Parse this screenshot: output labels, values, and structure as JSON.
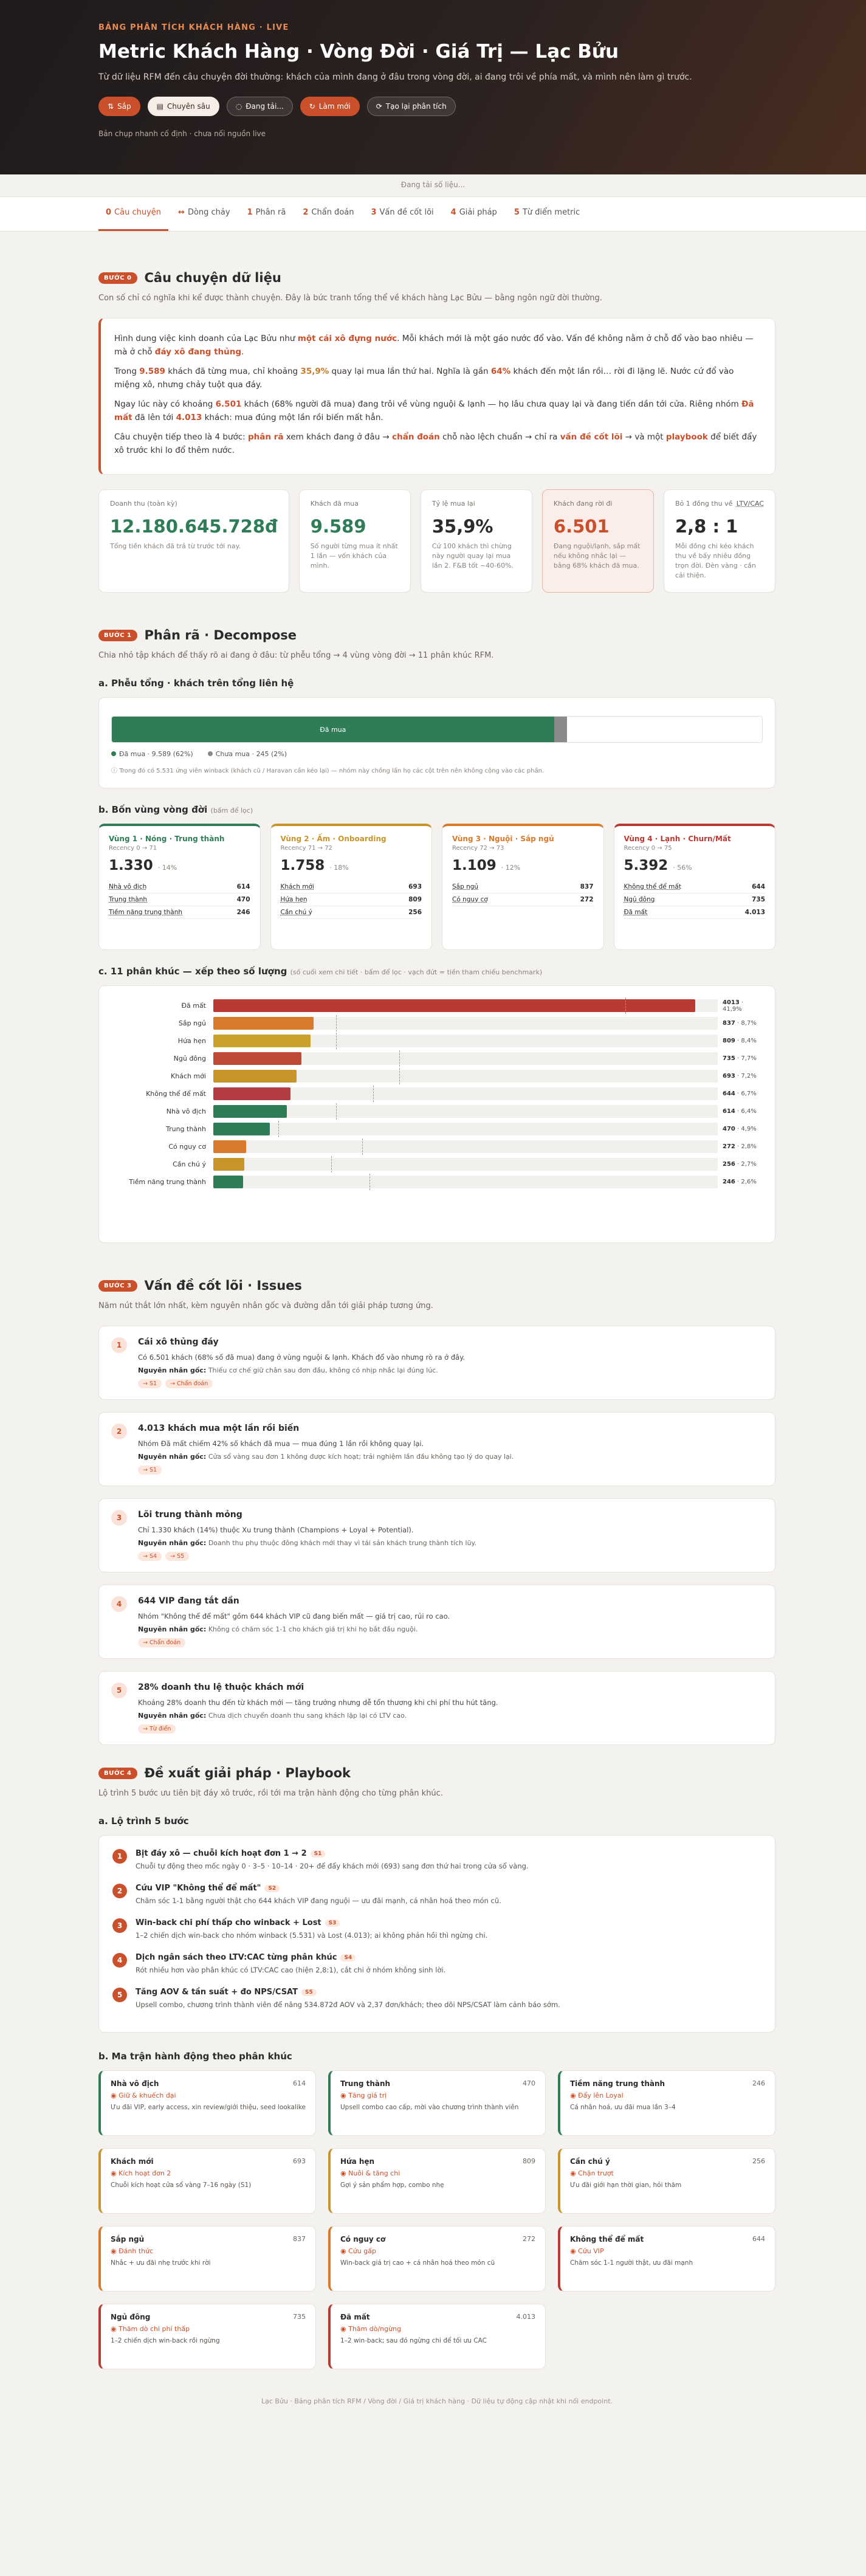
{
  "hero": {
    "eyebrow": "BẢNG PHÂN TÍCH KHÁCH HÀNG · LIVE",
    "title": "Metric Khách Hàng · Vòng Đời · Giá Trị — Lạc Bửu",
    "subtitle": "Từ dữ liệu RFM đến câu chuyện đời thường: khách của mình đang ở đâu trong vòng đời, ai đang trôi về phía mất, và mình nên làm gì trước.",
    "buttons": {
      "sort": "Sắp",
      "detail": "Chuyên sâu",
      "loading": "Đang tải...",
      "refresh": "Làm mới",
      "report": "Tạo lại phân tích"
    },
    "note": "Bản chụp nhanh cố định · chưa nối nguồn live"
  },
  "status": "Đang tải số liệu...",
  "tabs": [
    {
      "n": "0",
      "label": "Câu chuyện"
    },
    {
      "n": "↔",
      "label": "Dòng chảy"
    },
    {
      "n": "1",
      "label": "Phân rã"
    },
    {
      "n": "2",
      "label": "Chẩn đoán"
    },
    {
      "n": "3",
      "label": "Vấn đề cốt lõi"
    },
    {
      "n": "4",
      "label": "Giải pháp"
    },
    {
      "n": "5",
      "label": "Từ điển metric"
    }
  ],
  "story": {
    "pill": "BƯỚC 0",
    "title": "Câu chuyện dữ liệu",
    "lead": "Con số chỉ có nghĩa khi kể được thành chuyện. Đây là bức tranh tổng thể về khách hàng Lạc Bửu — bằng ngôn ngữ đời thường.",
    "p1a": "Hình dung việc kinh doanh của Lạc Bửu như ",
    "p1b": "một cái xô đựng nước",
    "p1c": ". Mỗi khách mới là một gáo nước đổ vào. Vấn đề không nằm ở chỗ đổ vào bao nhiêu — mà ở chỗ ",
    "p1d": "đáy xô đang thủng",
    "p1e": ".",
    "p2a": "Trong ",
    "p2b": "9.589",
    "p2c": " khách đã từng mua, chỉ khoảng ",
    "p2d": "35,9%",
    "p2e": " quay lại mua lần thứ hai. Nghĩa là gần ",
    "p2f": "64%",
    "p2g": " khách đến một lần rồi… rời đi lặng lẽ. Nước cứ đổ vào miệng xô, nhưng chảy tuột qua đáy.",
    "p3a": "Ngay lúc này có khoảng ",
    "p3b": "6.501",
    "p3c": " khách (68% người đã mua) đang trôi về vùng nguội & lạnh — họ lâu chưa quay lại và đang tiến dần tới cửa. Riêng nhóm ",
    "p3d": "Đã mất",
    "p3e": " đã lên tới ",
    "p3f": "4.013",
    "p3g": " khách: mua đúng một lần rồi biến mất hẳn.",
    "p4a": "Câu chuyện tiếp theo là 4 bước: ",
    "p4b": "phân rã",
    "p4c": " xem khách đang ở đâu → ",
    "p4d": "chẩn đoán",
    "p4e": " chỗ nào lệch chuẩn → chỉ ra ",
    "p4f": "vấn đề cốt lõi",
    "p4g": " → và một ",
    "p4h": "playbook",
    "p4i": " để biết đẩy xô trước khi lo đổ thêm nước."
  },
  "kpis": [
    {
      "label": "Doanh thu (toàn kỳ)",
      "value": "12.180.645.728đ",
      "desc": "Tổng tiền khách đã trả từ trước tới nay.",
      "color": "#2f7d57"
    },
    {
      "label": "Khách đã mua",
      "value": "9.589",
      "desc": "Số người từng mua ít nhất 1 lần — vốn khách của mình.",
      "color": "#2f7d57"
    },
    {
      "label": "Tỷ lệ mua lại",
      "value": "35,9%",
      "desc": "Cứ 100 khách thì chừng này người quay lại mua lần 2. F&B tốt ~40-60%.",
      "color": "#2b2b2b"
    },
    {
      "label": "Khách đang rời đi",
      "value": "6.501",
      "desc": "Đang nguội/lạnh, sắp mất nếu không nhắc lại — bằng 68% khách đã mua.",
      "color": "#c9502b"
    },
    {
      "label": "Bỏ 1 đồng thu về",
      "label2": "LTV/CAC",
      "value": "2,8 : 1",
      "desc": "Mỗi đồng chi kéo khách thu về bấy nhiêu đồng trọn đời. Đèn vàng · cần cải thiện.",
      "color": "#2b2b2b"
    }
  ],
  "decompose": {
    "pill": "BƯỚC 1",
    "title": "Phân rã · Decompose",
    "lead": "Chia nhỏ tập khách để thấy rõ ai đang ở đâu: từ phễu tổng → 4 vùng vòng đời → 11 phân khúc RFM.",
    "funnel_h": "a. Phễu tổng · khách trên tổng liên hệ",
    "bar_label": "Đã mua",
    "leg1": "Đã mua · 9.589 (62%)",
    "leg2": "Chưa mua · 245 (2%)",
    "note": "Trong đó có 5.531 ứng viên winback (khách cũ / Haravan cần kéo lại) — nhóm này chồng lấn họ các cột trên nên không cộng vào các phần.",
    "cycle_h": "b. Bốn vùng vòng đời",
    "cycle_small": "(bấm để lọc)",
    "seg_h": "c. 11 phân khúc — xếp theo số lượng",
    "seg_small": "(số cuối xem chi tiết · bấm để lọc · vạch đứt = tiền tham chiếu benchmark)"
  },
  "cycles": [
    {
      "title": "Vùng 1 · Nóng · Trung thành",
      "rec": "Recency 0 → 71",
      "big": "1.330",
      "pct": "· 14%",
      "rows": [
        [
          "Nhà vô địch",
          "614"
        ],
        [
          "Trung thành",
          "470"
        ],
        [
          "Tiềm năng trung thành",
          "246"
        ]
      ],
      "color": "#2f7d57"
    },
    {
      "title": "Vùng 2 · Ấm · Onboarding",
      "rec": "Recency 71 → 72",
      "big": "1.758",
      "pct": "· 18%",
      "rows": [
        [
          "Khách mới",
          "693"
        ],
        [
          "Hứa hẹn",
          "809"
        ],
        [
          "Cần chú ý",
          "256"
        ]
      ],
      "color": "#c8952a"
    },
    {
      "title": "Vùng 3 · Nguội · Sắp ngủ",
      "rec": "Recency 72 → 73",
      "big": "1.109",
      "pct": "· 12%",
      "rows": [
        [
          "Sắp ngủ",
          "837"
        ],
        [
          "Có nguy cơ",
          "272"
        ]
      ],
      "color": "#d97a2a"
    },
    {
      "title": "Vùng 4 · Lạnh · Churn/Mất",
      "rec": "Recency 0 → 75",
      "big": "5.392",
      "pct": "· 56%",
      "rows": [
        [
          "Không thể để mất",
          "644"
        ],
        [
          "Ngủ đông",
          "735"
        ],
        [
          "Đã mất",
          "4.013"
        ]
      ],
      "color": "#b93a32"
    }
  ],
  "chart_data": {
    "type": "bar",
    "orientation": "horizontal",
    "title": "11 phân khúc — xếp theo số lượng",
    "categories": [
      "Đã mất",
      "Sắp ngủ",
      "Hứa hẹn",
      "Ngủ đông",
      "Khách mới",
      "Không thể để mất",
      "Nhà vô địch",
      "Trung thành",
      "Có nguy cơ",
      "Cần chú ý",
      "Tiềm năng trung thành"
    ],
    "values": [
      4013,
      837,
      809,
      735,
      693,
      644,
      614,
      470,
      272,
      256,
      246
    ],
    "percents": [
      "41,9%",
      "8,7%",
      "8,4%",
      "7,7%",
      "7,2%",
      "6,7%",
      "6,4%",
      "4,9%",
      "2,8%",
      "2,7%",
      "2,6%"
    ],
    "benchmarks": [
      3430,
      1020,
      1020,
      1550,
      1550,
      1330,
      1020,
      540,
      1240,
      980,
      1300
    ],
    "colors": [
      "#b93a32",
      "#d97a2a",
      "#c8a22a",
      "#c04a38",
      "#c8952a",
      "#b23b44",
      "#2f7d57",
      "#2f7d57",
      "#d97a2a",
      "#c8952a",
      "#2f7d57"
    ],
    "xlim": [
      0,
      4200
    ]
  },
  "issues_sec": {
    "pill": "BƯỚC 3",
    "title": "Vấn đề cốt lõi · Issues",
    "lead": "Năm nút thắt lớn nhất, kèm nguyên nhân gốc và đường dẫn tới giải pháp tương ứng.",
    "cause_label": "Nguyên nhân gốc:"
  },
  "issues": [
    {
      "n": "1",
      "title": "Cái xô thủng đáy",
      "text": "Có 6.501 khách (68% số đã mua) đang ở vùng nguội & lạnh. Khách đổ vào nhưng rò ra ở đây.",
      "cause": "Thiếu cơ chế giữ chân sau đơn đầu, không có nhịp nhắc lại đúng lúc.",
      "tags": [
        "→ S1",
        "→ Chẩn đoán"
      ]
    },
    {
      "n": "2",
      "title": "4.013 khách mua một lần rồi biến",
      "text": "Nhóm Đã mất chiếm 42% số khách đã mua — mua đúng 1 lần rồi không quay lại.",
      "cause": "Cửa sổ vàng sau đơn 1 không được kích hoạt; trải nghiệm lần đầu không tạo lý do quay lại.",
      "tags": [
        "→ S1"
      ]
    },
    {
      "n": "3",
      "title": "Lõi trung thành mỏng",
      "text": "Chỉ 1.330 khách (14%) thuộc Xu trung thành (Champions + Loyal + Potential).",
      "cause": "Doanh thu phụ thuộc đông khách mới thay vì tái sản khách trung thành tích lũy.",
      "tags": [
        "→ S4",
        "→ S5"
      ]
    },
    {
      "n": "4",
      "title": "644 VIP đang tắt dần",
      "text": "Nhóm \"Không thể để mất\" gồm 644 khách VIP cũ đang biến mất — giá trị cao, rủi ro cao.",
      "cause": "Không có chăm sóc 1-1 cho khách giá trị khi họ bắt đầu nguội.",
      "tags": [
        "→ Chẩn đoán"
      ]
    },
    {
      "n": "5",
      "title": "28% doanh thu lệ thuộc khách mới",
      "text": "Khoảng 28% doanh thu đến từ khách mới — tăng trưởng nhưng dễ tổn thương khi chi phí thu hút tăng.",
      "cause": "Chưa dịch chuyển doanh thu sang khách lặp lại có LTV cao.",
      "tags": [
        "→ Từ điển"
      ]
    }
  ],
  "playbook": {
    "pill": "BƯỚC 4",
    "title": "Đề xuất giải pháp · Playbook",
    "lead": "Lộ trình 5 bước ưu tiên bịt đáy xô trước, rồi tới ma trận hành động cho từng phân khúc.",
    "road_h": "a. Lộ trình 5 bước",
    "matrix_h": "b. Ma trận hành động theo phân khúc"
  },
  "steps": [
    {
      "n": "1",
      "title": "Bịt đáy xô — chuỗi kích hoạt đơn 1 → 2",
      "chip": "S1",
      "text": "Chuỗi tự động theo mốc ngày 0 · 3–5 · 10–14 · 20+ để đẩy khách mới (693) sang đơn thứ hai trong cửa sổ vàng."
    },
    {
      "n": "2",
      "title": "Cứu VIP \"Không thể để mất\"",
      "chip": "S2",
      "text": "Chăm sóc 1-1 bằng người thật cho 644 khách VIP đang nguội — ưu đãi mạnh, cá nhân hoá theo món cũ."
    },
    {
      "n": "3",
      "title": "Win-back chi phí thấp cho winback + Lost",
      "chip": "S3",
      "text": "1–2 chiến dịch win-back cho nhóm winback (5.531) và Lost (4.013); ai không phản hồi thì ngừng chi."
    },
    {
      "n": "4",
      "title": "Dịch ngân sách theo LTV:CAC từng phân khúc",
      "chip": "S4",
      "text": "Rót nhiều hơn vào phân khúc có LTV:CAC cao (hiện 2,8:1), cắt chi ở nhóm không sinh lời."
    },
    {
      "n": "5",
      "title": "Tăng AOV & tần suất + đo NPS/CSAT",
      "chip": "S5",
      "text": "Upsell combo, chương trình thành viên để nâng 534.872đ AOV và 2,37 đơn/khách; theo dõi NPS/CSAT làm cảnh báo sớm."
    }
  ],
  "matrix": [
    {
      "name": "Nhà vô địch",
      "count": "614",
      "action": "Giữ & khuếch đại",
      "text": "Ưu đãi VIP, early access, xin review/giới thiệu, seed lookalike",
      "color": "#2f7d57"
    },
    {
      "name": "Trung thành",
      "count": "470",
      "action": "Tăng giá trị",
      "text": "Upsell combo cao cấp, mời vào chương trình thành viên",
      "color": "#2f7d57"
    },
    {
      "name": "Tiềm năng trung thành",
      "count": "246",
      "action": "Đẩy lên Loyal",
      "text": "Cá nhân hoá, ưu đãi mua lần 3–4",
      "color": "#2f7d57"
    },
    {
      "name": "Khách mới",
      "count": "693",
      "action": "Kích hoạt đơn 2",
      "text": "Chuỗi kích hoạt cửa sổ vàng 7–16 ngày (S1)",
      "color": "#c8952a"
    },
    {
      "name": "Hứa hẹn",
      "count": "809",
      "action": "Nuôi & tăng chi",
      "text": "Gợi ý sản phẩm hợp, combo nhẹ",
      "color": "#c8952a"
    },
    {
      "name": "Cần chú ý",
      "count": "256",
      "action": "Chặn trượt",
      "text": "Ưu đãi giới hạn thời gian, hỏi thăm",
      "color": "#c8952a"
    },
    {
      "name": "Sắp ngủ",
      "count": "837",
      "action": "Đánh thức",
      "text": "Nhắc + ưu đãi nhẹ trước khi rời",
      "color": "#d97a2a"
    },
    {
      "name": "Có nguy cơ",
      "count": "272",
      "action": "Cứu gấp",
      "text": "Win-back giá trị cao + cá nhân hoá theo món cũ",
      "color": "#d97a2a"
    },
    {
      "name": "Không thể để mất",
      "count": "644",
      "action": "Cứu VIP",
      "text": "Chăm sóc 1-1 người thật, ưu đãi mạnh",
      "color": "#b93a32"
    },
    {
      "name": "Ngủ đông",
      "count": "735",
      "action": "Thăm dò chi phí thấp",
      "text": "1–2 chiến dịch win-back rồi ngừng",
      "color": "#b93a32"
    },
    {
      "name": "Đã mất",
      "count": "4.013",
      "action": "Thăm dò/ngừng",
      "text": "1–2 win-back; sau đó ngừng chi để tối ưu CAC",
      "color": "#b93a32"
    }
  ],
  "footer": "Lạc Bửu · Bảng phân tích RFM / Vòng đời / Giá trị khách hàng · Dữ liệu tự động cập nhật khi nối endpoint."
}
